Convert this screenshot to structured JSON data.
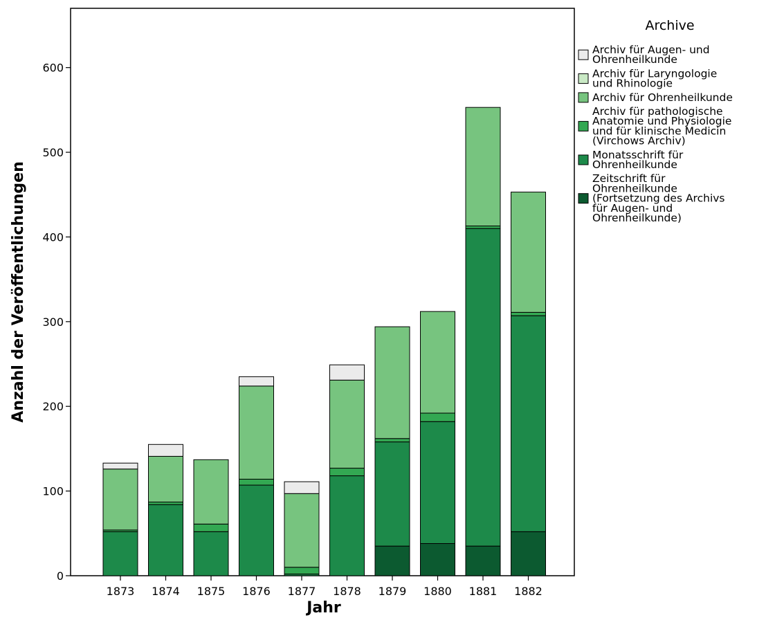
{
  "chart_data": {
    "type": "bar",
    "stacked": true,
    "xlabel": "Jahr",
    "ylabel": "Anzahl der Veröffentlichungen",
    "ylim": [
      0,
      670
    ],
    "yticks": [
      0,
      100,
      200,
      300,
      400,
      500,
      600
    ],
    "grid": false,
    "legend_title": "Archive",
    "legend_position": "right",
    "categories": [
      "1873",
      "1874",
      "1875",
      "1876",
      "1877",
      "1878",
      "1879",
      "1880",
      "1881",
      "1882"
    ],
    "series": [
      {
        "name": "Zeitschrift für Ohrenheilkunde (Fortsetzung des Archivs für Augen- und Ohrenheilkunde)",
        "legend_lines": [
          "Zeitschrift für",
          "Ohrenheilkunde",
          "(Fortsetzung des Archivs",
          "für Augen- und",
          "Ohrenheilkunde)"
        ],
        "color": "#0c5a30",
        "values": [
          0,
          0,
          0,
          0,
          0,
          0,
          35,
          38,
          35,
          52
        ]
      },
      {
        "name": "Monatsschrift für Ohrenheilkunde",
        "legend_lines": [
          "Monatsschrift für",
          "Ohrenheilkunde"
        ],
        "color": "#1d8a4a",
        "values": [
          52,
          84,
          52,
          107,
          2,
          118,
          123,
          144,
          375,
          255
        ]
      },
      {
        "name": "Archiv für pathologische Anatomie und Physiologie und für klinische Medicin (Virchows Archiv)",
        "legend_lines": [
          "Archiv für pathologische",
          "Anatomie und Physiologie",
          "und für klinische Medicin",
          "(Virchows Archiv)"
        ],
        "color": "#33a852",
        "values": [
          2,
          3,
          9,
          7,
          8,
          9,
          4,
          10,
          3,
          4
        ]
      },
      {
        "name": "Archiv für Ohrenheilkunde",
        "legend_lines": [
          "Archiv für Ohrenheilkunde"
        ],
        "color": "#77c47f",
        "values": [
          72,
          54,
          76,
          110,
          87,
          104,
          132,
          120,
          140,
          142
        ]
      },
      {
        "name": "Archiv für Laryngologie und Rhinologie",
        "legend_lines": [
          "Archiv für Laryngologie",
          "und Rhinologie"
        ],
        "color": "#c9e9c5",
        "values": [
          0,
          0,
          0,
          0,
          0,
          0,
          0,
          0,
          0,
          0
        ]
      },
      {
        "name": "Archiv für Augen- und Ohrenheilkunde",
        "legend_lines": [
          "Archiv für Augen- und",
          "Ohrenheilkunde"
        ],
        "color": "#ebebeb",
        "values": [
          7,
          14,
          0,
          11,
          14,
          18,
          0,
          0,
          0,
          0
        ]
      }
    ]
  }
}
